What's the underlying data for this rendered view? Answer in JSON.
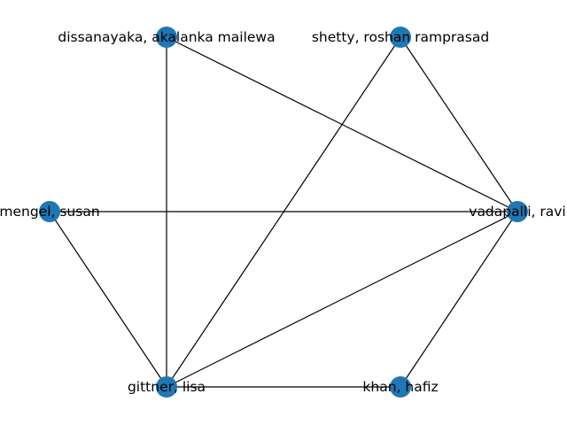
{
  "graph": {
    "node_color": "#1f77b4",
    "edge_color": "#000000",
    "nodes": [
      {
        "id": "dissanayaka",
        "label": "dissanayaka, akalanka mailewa"
      },
      {
        "id": "shetty",
        "label": "shetty, roshan ramprasad"
      },
      {
        "id": "mengel",
        "label": "mengel, susan"
      },
      {
        "id": "vadapalli",
        "label": "vadapalli, ravi"
      },
      {
        "id": "gittner",
        "label": "gittner, lisa"
      },
      {
        "id": "khan",
        "label": "khan, hafiz"
      }
    ],
    "edges": [
      [
        "dissanayaka",
        "gittner"
      ],
      [
        "dissanayaka",
        "vadapalli"
      ],
      [
        "shetty",
        "gittner"
      ],
      [
        "shetty",
        "vadapalli"
      ],
      [
        "mengel",
        "vadapalli"
      ],
      [
        "mengel",
        "gittner"
      ],
      [
        "gittner",
        "vadapalli"
      ],
      [
        "gittner",
        "khan"
      ],
      [
        "vadapalli",
        "khan"
      ]
    ]
  }
}
